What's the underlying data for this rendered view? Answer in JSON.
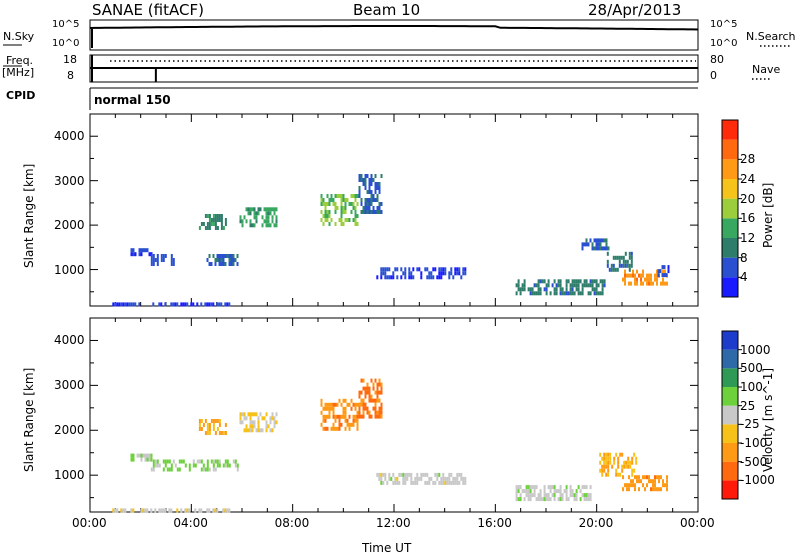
{
  "header": {
    "station": "SANAE (fitACF)",
    "beam": "Beam 10",
    "date": "28/Apr/2013"
  },
  "params": {
    "nsky_label": "N.Sky",
    "nsky_ticks": [
      "10^5",
      "10^0"
    ],
    "nsearch_label": "N.Search",
    "nsearch_ticks": [
      "10^5",
      "10^0"
    ],
    "freq_label": "Freq.",
    "freq_unit": "[MHz]",
    "freq_ticks": [
      "18",
      "8"
    ],
    "nave_label": "Nave",
    "nave_ticks": [
      "80",
      "0"
    ],
    "cpid_label": "CPID",
    "cpid_value": "normal 150"
  },
  "chart_data": [
    {
      "type": "heatmap",
      "title": "",
      "xlabel": "Time UT",
      "ylabel": "Slant Range [km]",
      "x_ticks": [
        "00:00",
        "04:00",
        "08:00",
        "12:00",
        "16:00",
        "20:00",
        "00:00"
      ],
      "xlim_hours": [
        0,
        24
      ],
      "ylim_km": [
        180,
        4500
      ],
      "y_ticks": [
        "1000",
        "2000",
        "3000",
        "4000"
      ],
      "colorbar": {
        "label": "Power [dB]",
        "ticks": [
          "4",
          "8",
          "12",
          "16",
          "20",
          "24",
          "28"
        ],
        "range": [
          0,
          30
        ],
        "colors": [
          "#1a1aff",
          "#2a4fd0",
          "#2e7d6b",
          "#38a860",
          "#9ccd3c",
          "#f5c31a",
          "#ff9a17",
          "#ff6a10",
          "#ff2b0a"
        ]
      },
      "regions": [
        {
          "t0": 1.6,
          "t1": 2.4,
          "r0": 1380,
          "r1": 1480,
          "v": 4
        },
        {
          "t0": 2.4,
          "t1": 3.3,
          "r0": 1150,
          "r1": 1350,
          "v": 5
        },
        {
          "t0": 4.6,
          "t1": 5.8,
          "r0": 1100,
          "r1": 1350,
          "v": 6
        },
        {
          "t0": 4.3,
          "t1": 5.4,
          "r0": 1950,
          "r1": 2250,
          "v": 9
        },
        {
          "t0": 5.9,
          "t1": 7.4,
          "r0": 2000,
          "r1": 2400,
          "v": 11
        },
        {
          "t0": 9.1,
          "t1": 10.6,
          "r0": 2050,
          "r1": 2700,
          "v": 14
        },
        {
          "t0": 10.6,
          "t1": 11.5,
          "r0": 2300,
          "r1": 3150,
          "v": 6
        },
        {
          "t0": 11.3,
          "t1": 14.8,
          "r0": 850,
          "r1": 1050,
          "v": 4
        },
        {
          "t0": 16.8,
          "t1": 20.3,
          "r0": 480,
          "r1": 780,
          "v": 8
        },
        {
          "t0": 19.4,
          "t1": 20.5,
          "r0": 1500,
          "r1": 1700,
          "v": 6
        },
        {
          "t0": 20.4,
          "t1": 21.4,
          "r0": 1000,
          "r1": 1400,
          "v": 8
        },
        {
          "t0": 21.0,
          "t1": 22.8,
          "r0": 650,
          "r1": 1000,
          "v": 22
        },
        {
          "t0": 22.4,
          "t1": 22.8,
          "r0": 900,
          "r1": 1100,
          "v": 4
        },
        {
          "t0": 0.8,
          "t1": 5.5,
          "r0": 200,
          "r1": 260,
          "v": 4
        }
      ]
    },
    {
      "type": "heatmap",
      "title": "",
      "xlabel": "Time UT",
      "ylabel": "Slant Range [km]",
      "x_ticks": [
        "00:00",
        "04:00",
        "08:00",
        "12:00",
        "16:00",
        "20:00",
        "00:00"
      ],
      "xlim_hours": [
        0,
        24
      ],
      "ylim_km": [
        180,
        4500
      ],
      "y_ticks": [
        "1000",
        "2000",
        "3000",
        "4000"
      ],
      "colorbar": {
        "label": "Velocity [m s^-1]",
        "ticks": [
          "1000",
          "500",
          "100",
          "25",
          "-25",
          "-100",
          "-500",
          "-1000"
        ],
        "range": [
          -1200,
          1200
        ],
        "colors": [
          "#1e3ccc",
          "#2e6aa8",
          "#2f9a56",
          "#6cd13a",
          "#c8c8c8",
          "#f6c21a",
          "#ff9a17",
          "#ff6a10",
          "#ff1a0a"
        ]
      },
      "regions": [
        {
          "t0": 1.6,
          "t1": 2.4,
          "r0": 1380,
          "r1": 1480,
          "v": 120
        },
        {
          "t0": 2.4,
          "t1": 5.8,
          "r0": 1150,
          "r1": 1350,
          "v": 180
        },
        {
          "t0": 4.3,
          "t1": 5.4,
          "r0": 1950,
          "r1": 2250,
          "v": -450
        },
        {
          "t0": 5.9,
          "t1": 7.4,
          "r0": 2000,
          "r1": 2400,
          "v": -150
        },
        {
          "t0": 9.1,
          "t1": 10.6,
          "r0": 2050,
          "r1": 2700,
          "v": -600
        },
        {
          "t0": 10.6,
          "t1": 11.5,
          "r0": 2300,
          "r1": 3150,
          "v": -700
        },
        {
          "t0": 11.3,
          "t1": 14.8,
          "r0": 850,
          "r1": 1050,
          "v": 0
        },
        {
          "t0": 16.8,
          "t1": 19.8,
          "r0": 480,
          "r1": 780,
          "v": 40
        },
        {
          "t0": 20.1,
          "t1": 21.6,
          "r0": 1000,
          "r1": 1500,
          "v": -380
        },
        {
          "t0": 21.0,
          "t1": 22.8,
          "r0": 650,
          "r1": 1000,
          "v": -550
        },
        {
          "t0": 0.8,
          "t1": 5.5,
          "r0": 200,
          "r1": 260,
          "v": -60
        }
      ]
    }
  ]
}
